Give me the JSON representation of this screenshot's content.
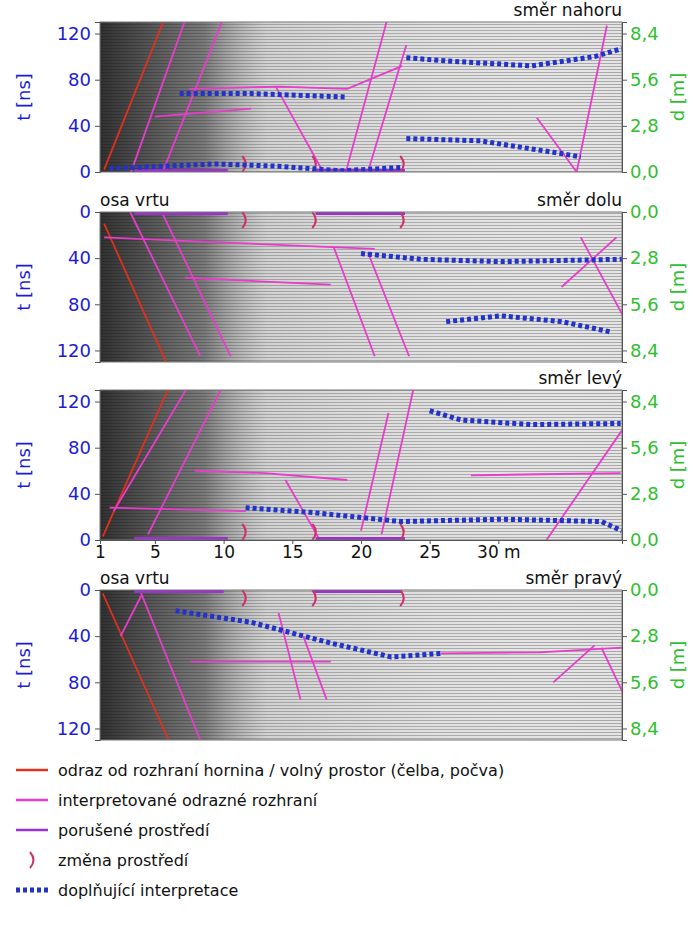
{
  "chart_data": [
    {
      "type": "line",
      "title": "směr nahoru",
      "ylabel": "t [ns]",
      "y2label": "d [m]",
      "legend": "bottom",
      "xlim": [
        1,
        39
      ],
      "ylim": [
        0,
        130
      ],
      "yticks": [
        0,
        40,
        80,
        120
      ],
      "y2lim": [
        0,
        9.1
      ],
      "y2ticks": [
        {
          "value": 0,
          "label": "0,0"
        },
        {
          "value": 2.8,
          "label": "2,8"
        },
        {
          "value": 5.6,
          "label": "5,6"
        },
        {
          "value": 8.4,
          "label": "8,4"
        }
      ],
      "series": [
        {
          "name": "odraz od rozhraní hornina / volný prostor (čelba, počva)",
          "color": "#e0301e",
          "line_style": "solid",
          "segments": [
            {
              "x": [
                1.3,
                5.8
              ],
              "values": [
                2,
                136
              ]
            }
          ]
        },
        {
          "name": "interpretované odrazné rozhraní",
          "color": "#e83ccc",
          "line_style": "solid",
          "segments": [
            {
              "x": [
                3.2,
                7.6
              ],
              "values": [
                -2,
                145
              ]
            },
            {
              "x": [
                5.5,
                10.2
              ],
              "values": [
                -2,
                140
              ]
            },
            {
              "x": [
                7.5,
                14,
                19,
                23
              ],
              "values": [
                72,
                74,
                72,
                92
              ]
            },
            {
              "x": [
                5,
                12
              ],
              "values": [
                48,
                55
              ]
            },
            {
              "x": [
                13.8,
                17.1
              ],
              "values": [
                74,
                3
              ]
            },
            {
              "x": [
                18.9,
                22.2
              ],
              "values": [
                0,
                145
              ]
            },
            {
              "x": [
                20.5,
                23.3
              ],
              "values": [
                0,
                110
              ]
            },
            {
              "x": [
                32.8,
                35.7
              ],
              "values": [
                47,
                0
              ]
            },
            {
              "x": [
                35.7,
                37.9
              ],
              "values": [
                0,
                127
              ]
            }
          ]
        },
        {
          "name": "porušené prostředí",
          "color": "#9933cc",
          "line_style": "solid",
          "segments": [
            {
              "x": [
                3.5,
                10.3
              ],
              "values": [
                0,
                0
              ]
            },
            {
              "x": [
                16.7,
                23.2
              ],
              "values": [
                0,
                0
              ]
            }
          ]
        },
        {
          "name": "změna prostředí",
          "color": "#d0306e",
          "line_style": "bracket",
          "segments": [
            {
              "x": [
                11.5,
                16.6,
                23
              ],
              "values": [
                0,
                0,
                0
              ]
            }
          ]
        },
        {
          "name": "doplňující interpretace",
          "color": "#2233cc",
          "line_style": "dotted",
          "segments": [
            {
              "x": [
                6.8,
                12,
                18.9
              ],
              "values": [
                68,
                68,
                65
              ]
            },
            {
              "x": [
                1.7,
                9.4,
                14,
                18.5,
                23
              ],
              "values": [
                3,
                7,
                5,
                1,
                4
              ]
            },
            {
              "x": [
                23.3,
                26.6,
                32.4,
                37,
                39
              ],
              "values": [
                99,
                96,
                92,
                100,
                107
              ]
            },
            {
              "x": [
                23.3,
                28.7,
                32.4,
                34.6,
                36
              ],
              "values": [
                29,
                27,
                20,
                16,
                13
              ]
            }
          ]
        }
      ]
    },
    {
      "type": "line",
      "title": "směr dolu",
      "annotation": "osa vrtu",
      "ylabel": "t [ns]",
      "y2label": "d [m]",
      "xlim": [
        1,
        39
      ],
      "ylim": [
        130,
        0
      ],
      "yticks": [
        0,
        40,
        80,
        120
      ],
      "y2lim": [
        9.1,
        0
      ],
      "y2ticks": [
        {
          "value": 0,
          "label": "0,0"
        },
        {
          "value": 2.8,
          "label": "2,8"
        },
        {
          "value": 5.6,
          "label": "5,6"
        },
        {
          "value": 8.4,
          "label": "8,4"
        }
      ],
      "series": [
        {
          "name": "odraz od rozhraní hornina / volný prostor (čelba, počva)",
          "color": "#e0301e",
          "line_style": "solid",
          "segments": [
            {
              "x": [
                1.3,
                6
              ],
              "values": [
                10,
                135
              ]
            }
          ]
        },
        {
          "name": "interpretované odrazné rozhraní",
          "color": "#e83ccc",
          "line_style": "solid",
          "segments": [
            {
              "x": [
                1.3,
                11,
                21
              ],
              "values": [
                22,
                27,
                32
              ]
            },
            {
              "x": [
                3.2,
                8.3
              ],
              "values": [
                0,
                125
              ]
            },
            {
              "x": [
                5.5,
                10.5
              ],
              "values": [
                0,
                125
              ]
            },
            {
              "x": [
                7.2,
                17.8
              ],
              "values": [
                57,
                63
              ]
            },
            {
              "x": [
                18,
                21
              ],
              "values": [
                30,
                125
              ]
            },
            {
              "x": [
                20.5,
                23.5
              ],
              "values": [
                35,
                125
              ]
            },
            {
              "x": [
                34.6,
                38.6
              ],
              "values": [
                65,
                22
              ]
            },
            {
              "x": [
                36,
                39.3
              ],
              "values": [
                22,
                95
              ]
            }
          ]
        },
        {
          "name": "porušené prostředí",
          "color": "#9933cc",
          "line_style": "solid",
          "segments": [
            {
              "x": [
                3.5,
                10.3
              ],
              "values": [
                0,
                0
              ]
            },
            {
              "x": [
                16.7,
                23.2
              ],
              "values": [
                0,
                0
              ]
            }
          ]
        },
        {
          "name": "změna prostředí",
          "color": "#d0306e",
          "line_style": "bracket",
          "segments": [
            {
              "x": [
                11.5,
                16.6,
                23
              ],
              "values": [
                0,
                0,
                0
              ]
            }
          ]
        },
        {
          "name": "doplňující interpretace",
          "color": "#2233cc",
          "line_style": "dotted",
          "segments": [
            {
              "x": [
                20,
                24.4,
                30.2,
                34.6,
                39
              ],
              "values": [
                36,
                41,
                43,
                42,
                41
              ]
            },
            {
              "x": [
                26.2,
                30.2,
                34.6,
                38.2
              ],
              "values": [
                95,
                90,
                95,
                104
              ]
            }
          ]
        }
      ]
    },
    {
      "type": "line",
      "title": "směr levý",
      "ylabel": "t [ns]",
      "y2label": "d [m]",
      "xlim": [
        1,
        39
      ],
      "xticks": [
        1,
        5,
        10,
        15,
        20,
        25,
        {
          "value": 30,
          "label": "30 m"
        }
      ],
      "ylim": [
        0,
        130
      ],
      "yticks": [
        0,
        40,
        80,
        120
      ],
      "y2lim": [
        0,
        9.1
      ],
      "y2ticks": [
        {
          "value": 0,
          "label": "0,0"
        },
        {
          "value": 2.8,
          "label": "2,8"
        },
        {
          "value": 5.6,
          "label": "5,6"
        },
        {
          "value": 8.4,
          "label": "8,4"
        }
      ],
      "series": [
        {
          "name": "odraz od rozhraní hornina / volný prostor (čelba, počva)",
          "color": "#e0301e",
          "line_style": "solid",
          "segments": [
            {
              "x": [
                1.2,
                6
              ],
              "values": [
                3,
                132
              ]
            }
          ]
        },
        {
          "name": "interpretované odrazné rozhraní",
          "color": "#e83ccc",
          "line_style": "solid",
          "segments": [
            {
              "x": [
                2,
                7.5
              ],
              "values": [
                25,
                135
              ]
            },
            {
              "x": [
                4.5,
                10
              ],
              "values": [
                5,
                135
              ]
            },
            {
              "x": [
                1.7,
                11.6
              ],
              "values": [
                28,
                25
              ]
            },
            {
              "x": [
                7.9,
                13,
                19
              ],
              "values": [
                60,
                58,
                52
              ]
            },
            {
              "x": [
                14.5,
                17
              ],
              "values": [
                52,
                0
              ]
            },
            {
              "x": [
                20,
                22
              ],
              "values": [
                8,
                110
              ]
            },
            {
              "x": [
                21.5,
                23.8
              ],
              "values": [
                5,
                130
              ]
            },
            {
              "x": [
                28,
                33,
                38.9
              ],
              "values": [
                56,
                57,
                58
              ]
            },
            {
              "x": [
                33.5,
                39
              ],
              "values": [
                0,
                95
              ]
            }
          ]
        },
        {
          "name": "porušené prostředí",
          "color": "#9933cc",
          "line_style": "solid",
          "segments": [
            {
              "x": [
                3.5,
                10.3
              ],
              "values": [
                0,
                0
              ]
            },
            {
              "x": [
                16.7,
                23.2
              ],
              "values": [
                0,
                0
              ]
            }
          ]
        },
        {
          "name": "změna prostředí",
          "color": "#d0306e",
          "line_style": "bracket",
          "segments": [
            {
              "x": [
                11.5,
                16.6,
                23
              ],
              "values": [
                0,
                0,
                0
              ]
            }
          ]
        },
        {
          "name": "doplňující interpretace",
          "color": "#2233cc",
          "line_style": "dotted",
          "segments": [
            {
              "x": [
                11.6,
                16.3,
                22.9,
                30.2,
                37.5,
                39
              ],
              "values": [
                28,
                24,
                16,
                18,
                16,
                8
              ]
            },
            {
              "x": [
                25,
                27.3,
                32.4,
                38.9
              ],
              "values": [
                112,
                104,
                100,
                101
              ]
            }
          ]
        }
      ]
    },
    {
      "type": "line",
      "title": "směr pravý",
      "annotation": "osa vrtu",
      "ylabel": "t [ns]",
      "y2label": "d [m]",
      "xlim": [
        1,
        39
      ],
      "ylim": [
        130,
        0
      ],
      "yticks": [
        0,
        40,
        80,
        120
      ],
      "y2lim": [
        9.1,
        0
      ],
      "y2ticks": [
        {
          "value": 0,
          "label": "0,0"
        },
        {
          "value": 2.8,
          "label": "2,8"
        },
        {
          "value": 5.6,
          "label": "5,6"
        },
        {
          "value": 8.4,
          "label": "8,4"
        }
      ],
      "series": [
        {
          "name": "odraz od rozhraní hornina / volný prostor (čelba, počva)",
          "color": "#e0301e",
          "line_style": "solid",
          "segments": [
            {
              "x": [
                1.2,
                6
              ],
              "values": [
                3,
                130
              ]
            }
          ]
        },
        {
          "name": "interpretované odrazné rozhraní",
          "color": "#e83ccc",
          "line_style": "solid",
          "segments": [
            {
              "x": [
                2.5,
                4
              ],
              "values": [
                40,
                5
              ]
            },
            {
              "x": [
                3.9,
                8.3
              ],
              "values": [
                0,
                130
              ]
            },
            {
              "x": [
                7.6,
                17.8
              ],
              "values": [
                62,
                62
              ]
            },
            {
              "x": [
                14,
                15.6
              ],
              "values": [
                20,
                95
              ]
            },
            {
              "x": [
                15.8,
                17.5
              ],
              "values": [
                40,
                95
              ]
            },
            {
              "x": [
                25.8,
                33,
                39
              ],
              "values": [
                55,
                54,
                50
              ]
            },
            {
              "x": [
                34,
                37
              ],
              "values": [
                80,
                48
              ]
            },
            {
              "x": [
                37.5,
                39.3
              ],
              "values": [
                50,
                95
              ]
            }
          ]
        },
        {
          "name": "porušené prostředí",
          "color": "#9933cc",
          "line_style": "solid",
          "segments": [
            {
              "x": [
                3.5,
                10
              ],
              "values": [
                0,
                0
              ]
            },
            {
              "x": [
                16.5,
                23
              ],
              "values": [
                0,
                0
              ]
            }
          ]
        },
        {
          "name": "změna prostředí",
          "color": "#d0306e",
          "line_style": "bracket",
          "segments": [
            {
              "x": [
                11.5,
                16.6,
                23
              ],
              "values": [
                0,
                0,
                0
              ]
            }
          ]
        },
        {
          "name": "doplňující interpretace",
          "color": "#2233cc",
          "line_style": "dotted",
          "segments": [
            {
              "x": [
                6.5,
                12,
                17.8,
                22.2,
                25.8
              ],
              "values": [
                18,
                28,
                46,
                58,
                55
              ]
            }
          ]
        }
      ]
    }
  ]
}
